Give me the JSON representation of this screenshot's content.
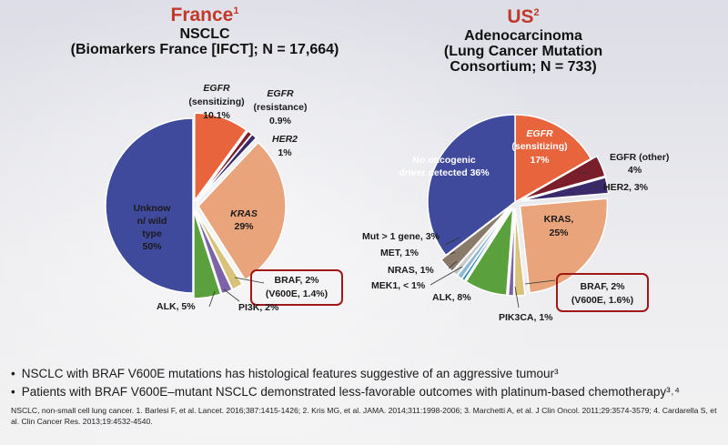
{
  "france": {
    "country": "France",
    "sup": "1",
    "line1": "NSCLC",
    "line2": "(Biomarkers France [IFCT]; N = 17,664)"
  },
  "us": {
    "country": "US",
    "sup": "2",
    "line1": "Adenocarcinoma",
    "line2": "(Lung Cancer Mutation",
    "line3": "Consortium; N = 733)"
  },
  "chart_data": [
    {
      "type": "pie",
      "title": "France NSCLC",
      "slices": [
        {
          "label": "EGFR (sensitizing) 10.1%",
          "value": 10.1,
          "color": "#e8643c"
        },
        {
          "label": "EGFR (resistance) 0.9%",
          "value": 0.9,
          "color": "#7a1e2c"
        },
        {
          "label": "HER2 1%",
          "value": 1,
          "color": "#3b2a6b"
        },
        {
          "label": "KRAS 29%",
          "value": 29,
          "color": "#e9a47c"
        },
        {
          "label": "BRAF, 2% (V600E, 1.4%)",
          "value": 2,
          "color": "#d9c27a"
        },
        {
          "label": "PI3K, 2%",
          "value": 2,
          "color": "#7d62a8"
        },
        {
          "label": "ALK, 5%",
          "value": 5,
          "color": "#5aa03c"
        },
        {
          "label": "Unknow n/ wild type 50%",
          "value": 50,
          "color": "#3f4a9c"
        }
      ]
    },
    {
      "type": "pie",
      "title": "US Adenocarcinoma",
      "slices": [
        {
          "label": "EGFR (sensitizing) 17%",
          "value": 17,
          "color": "#e8643c"
        },
        {
          "label": "EGFR (other) 4%",
          "value": 4,
          "color": "#7a1e2c"
        },
        {
          "label": "HER2, 3%",
          "value": 3,
          "color": "#3b2a6b"
        },
        {
          "label": "KRAS, 25%",
          "value": 25,
          "color": "#e9a47c"
        },
        {
          "label": "BRAF, 2% (V600E, 1.6%)",
          "value": 2,
          "color": "#d9c27a"
        },
        {
          "label": "PIK3CA, 1%",
          "value": 1,
          "color": "#7d62a8"
        },
        {
          "label": "ALK, 8%",
          "value": 8,
          "color": "#5aa03c"
        },
        {
          "label": "MEK1, < 1%",
          "value": 0.6,
          "color": "#2f8fb0"
        },
        {
          "label": "NRAS, 1%",
          "value": 1,
          "color": "#8fb8d8"
        },
        {
          "label": "MET, 1%",
          "value": 1,
          "color": "#c8c8c8"
        },
        {
          "label": "Mut > 1 gene, 3%",
          "value": 3,
          "color": "#8a7a6a"
        },
        {
          "label": "No oncogenic driver detected 36%",
          "value": 36,
          "color": "#3f4a9c"
        }
      ]
    }
  ],
  "fr_labels": {
    "egfr_s1": "EGFR",
    "egfr_s2": "(sensitizing)",
    "egfr_s3": "10.1%",
    "egfr_r1": "EGFR",
    "egfr_r2": "(resistance)",
    "egfr_r3": "0.9%",
    "her2_1": "HER2",
    "her2_2": "1%",
    "kras_1": "KRAS",
    "kras_2": "29%",
    "unk1": "Unknow",
    "unk2": "n/ wild",
    "unk3": "type",
    "unk4": "50%",
    "alk": "ALK, 5%",
    "pi3k": "PI3K, 2%",
    "braf1": "BRAF, 2%",
    "braf2": "(V600E, 1.4%)"
  },
  "us_labels": {
    "egfr_s1": "EGFR",
    "egfr_s2": "(sensitizing)",
    "egfr_s3": "17%",
    "egfr_o1": "EGFR (other)",
    "egfr_o2": "4%",
    "her2": "HER2, 3%",
    "kras1": "KRAS,",
    "kras2": "25%",
    "none1": "No oncogenic",
    "none2": "driver detected 36%",
    "mut": "Mut > 1 gene, 3%",
    "met": "MET, 1%",
    "nras": "NRAS, 1%",
    "mek1": "MEK1, < 1%",
    "alk": "ALK, 8%",
    "pik3ca": "PIK3CA, 1%",
    "braf1": "BRAF, 2%",
    "braf2": "(V600E, 1.6%)"
  },
  "bullets": [
    "NSCLC with BRAF V600E mutations has histological features suggestive of an aggressive tumour³",
    "Patients with BRAF V600E–mutant NSCLC demonstrated less-favorable outcomes with platinum-based chemotherapy³˒⁴"
  ],
  "refs": "NSCLC, non-small cell lung cancer. 1. Barlesi F, et al. Lancet. 2016;387:1415-1426; 2. Kris MG, et al. JAMA. 2014;311:1998-2006; 3. Marchetti A, et al. J Clin Oncol. 2011;29:3574-3579; 4. Cardarella S, et al. Clin Cancer Res. 2013;19:4532-4540."
}
